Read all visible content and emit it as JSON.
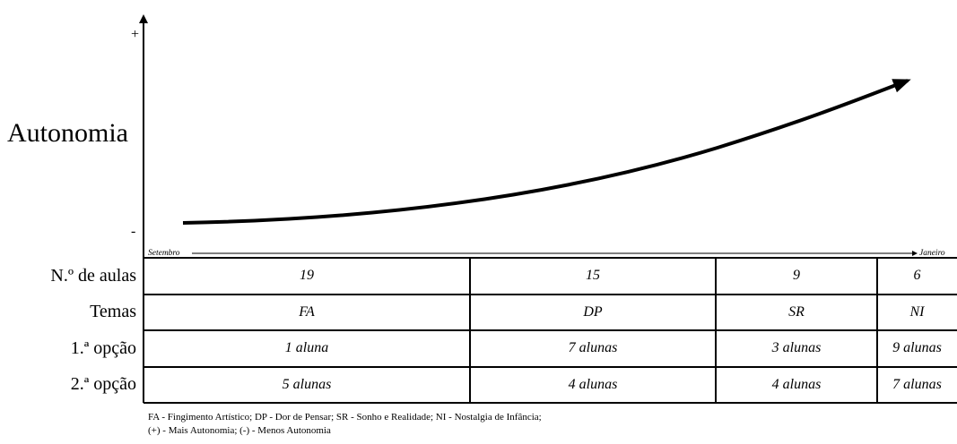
{
  "axis": {
    "y_title": "Autonomia",
    "y_high": "+",
    "y_low": "-",
    "x_start": "Setembro",
    "x_end": "Janeiro"
  },
  "table": {
    "row_labels": [
      "N.º de aulas",
      "Temas",
      "1.ª opção",
      "2.ª opção"
    ],
    "columns": [
      {
        "aulas": "19",
        "tema": "FA",
        "opcao1": "1 aluna",
        "opcao2": "5 alunas"
      },
      {
        "aulas": "15",
        "tema": "DP",
        "opcao1": "7 alunas",
        "opcao2": "4 alunas"
      },
      {
        "aulas": "9",
        "tema": "SR",
        "opcao1": "3 alunas",
        "opcao2": "4 alunas"
      },
      {
        "aulas": "6",
        "tema": "NI",
        "opcao1": "9 alunas",
        "opcao2": "7 alunas"
      }
    ]
  },
  "legend": {
    "line1": "FA - Fingimento Artístico; DP - Dor de Pensar; SR - Sonho e Realidade; NI - Nostalgia de Infância;",
    "line2": "(+) - Mais Autonomia; (-) - Menos Autonomia"
  },
  "colors": {
    "ink": "#000000",
    "background": "#ffffff"
  }
}
